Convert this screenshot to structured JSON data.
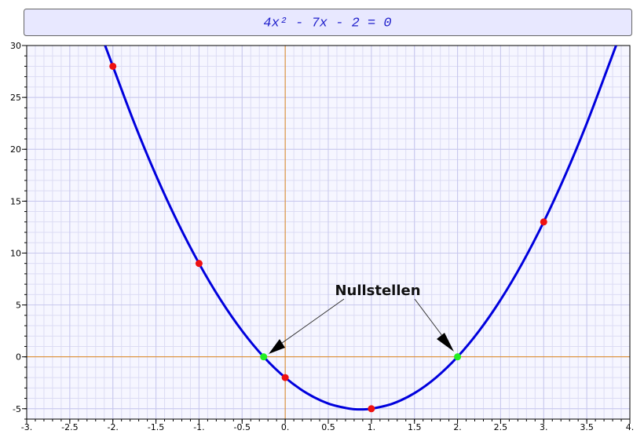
{
  "chart_data": {
    "type": "line",
    "title": "4x² - 7x - 2 = 0",
    "annotation": "Nullstellen",
    "xlim": [
      -3,
      4
    ],
    "ylim": [
      -6,
      30
    ],
    "xticks": [
      {
        "value": -3,
        "label": "-3."
      },
      -2.5,
      {
        "value": -2,
        "label": "-2."
      },
      -1.5,
      {
        "value": -1,
        "label": "-1."
      },
      -0.5,
      {
        "value": 0,
        "label": "0."
      },
      0.5,
      {
        "value": 1,
        "label": "1."
      },
      1.5,
      {
        "value": 2,
        "label": "2."
      },
      2.5,
      {
        "value": 3,
        "label": "3."
      },
      3.5,
      {
        "value": 4,
        "label": "4."
      }
    ],
    "yticks": [
      -5,
      0,
      5,
      10,
      15,
      20,
      25,
      30
    ],
    "grid": true,
    "curve": {
      "color": "#0000dd",
      "x": [
        -2.09,
        -2,
        -1.75,
        -1.5,
        -1.25,
        -1,
        -0.75,
        -0.5,
        -0.25,
        0,
        0.25,
        0.5,
        0.75,
        0.875,
        1,
        1.25,
        1.5,
        1.75,
        2,
        2.25,
        2.5,
        2.75,
        3,
        3.25,
        3.5,
        3.75,
        3.84
      ],
      "values": [
        30,
        28,
        22.5,
        17.5,
        13,
        9,
        5.5,
        2.5,
        0,
        -2,
        -3.5,
        -4.5,
        -5,
        -5.0625,
        -5,
        -4.5,
        -3.5,
        -2,
        0,
        2.5,
        5.5,
        9,
        13,
        17.5,
        22.5,
        28,
        30
      ]
    },
    "points": {
      "color": "#ee1111",
      "x": [
        -2,
        -1,
        0,
        1,
        3
      ],
      "values": [
        28,
        9,
        -2,
        -5,
        13
      ]
    },
    "roots": {
      "color": "#22ee22",
      "x": [
        -0.25,
        2
      ],
      "values": [
        0,
        0
      ]
    }
  }
}
